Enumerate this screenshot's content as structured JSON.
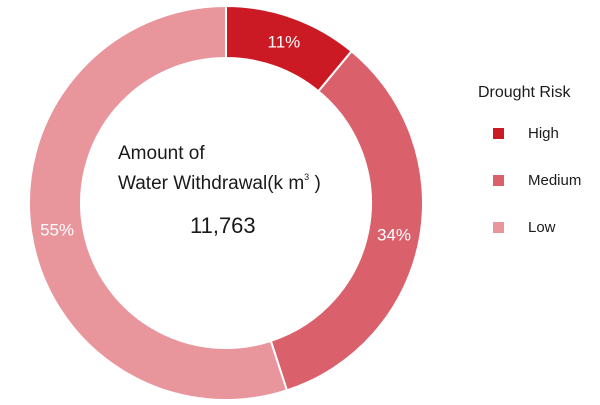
{
  "chart_data": {
    "type": "pie",
    "subtype": "donut",
    "center_title_line1": "Amount of",
    "center_title_line2": "Water Withdrawal",
    "center_unit": "(k m",
    "center_unit_sup": "3",
    "center_unit_close": ")",
    "center_value": "11,763",
    "legend_title": "Drought Risk",
    "legend_position": "right",
    "slices": [
      {
        "label": "High",
        "value": 11,
        "display": "11%",
        "color": "#cc1a24"
      },
      {
        "label": "Medium",
        "value": 34,
        "display": "34%",
        "color": "#da606b"
      },
      {
        "label": "Low",
        "value": 55,
        "display": "55%",
        "color": "#e8959c"
      }
    ]
  }
}
